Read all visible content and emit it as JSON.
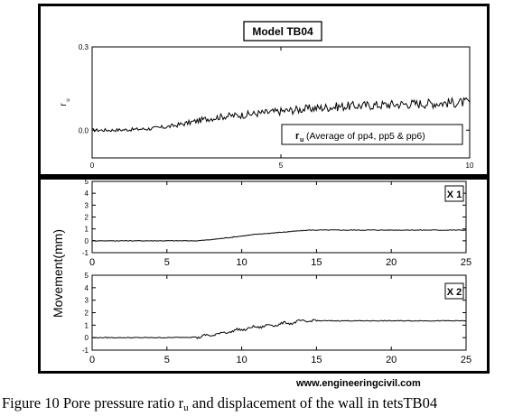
{
  "caption": {
    "prefix": "Figure 10 Pore pressure ratio r",
    "sub": "u",
    "suffix": " and displacement of the wall in tetsTB04"
  },
  "watermark": "www.engineeringcivil.com",
  "chart_data": [
    {
      "type": "line",
      "title": "Model TB04",
      "ylabel": "r",
      "ylabel_sub": "u",
      "legend": "r",
      "legend_sub": "u",
      "legend_text": " (Average of pp4, pp5 & pp6)",
      "xlim": [
        0,
        10
      ],
      "ylim": [
        -0.1,
        0.3
      ],
      "xticks": [
        "0",
        "5",
        "10"
      ],
      "yticks": [
        "0.0",
        "0.3"
      ],
      "ytick_values": [
        0.0,
        0.3
      ],
      "series": [
        {
          "x": [
            0,
            0.5,
            1,
            1.5,
            2,
            2.5,
            3,
            3.5,
            4,
            4.5,
            5,
            5.5,
            6,
            6.5,
            7,
            7.5,
            8,
            8.5,
            9,
            9.5,
            10
          ],
          "values": [
            0.0,
            0.0,
            0.002,
            0.005,
            0.012,
            0.025,
            0.04,
            0.05,
            0.055,
            0.062,
            0.068,
            0.075,
            0.08,
            0.085,
            0.088,
            0.09,
            0.093,
            0.095,
            0.097,
            0.099,
            0.1
          ]
        }
      ]
    },
    {
      "type": "line",
      "label": "X 1",
      "ylabel": "Movement(mm)",
      "xlim": [
        0,
        25
      ],
      "ylim": [
        -1,
        5
      ],
      "xticks": [
        "0",
        "5",
        "10",
        "15",
        "20",
        "25"
      ],
      "yticks": [
        "-1",
        "0",
        "1",
        "2",
        "3",
        "4",
        "5"
      ],
      "series": [
        {
          "x": [
            0,
            5,
            7,
            8,
            9,
            10,
            11,
            12,
            13,
            14,
            14.5,
            15,
            17,
            20,
            25
          ],
          "values": [
            0,
            0,
            0,
            0.1,
            0.25,
            0.4,
            0.55,
            0.65,
            0.75,
            0.85,
            0.9,
            0.9,
            0.9,
            0.9,
            0.9
          ]
        }
      ]
    },
    {
      "type": "line",
      "label": "X 2",
      "xlim": [
        0,
        25
      ],
      "ylim": [
        -1,
        5
      ],
      "xticks": [
        "0",
        "5",
        "10",
        "15",
        "20",
        "25"
      ],
      "yticks": [
        "-1",
        "0",
        "1",
        "2",
        "3",
        "4",
        "5"
      ],
      "series": [
        {
          "x": [
            0,
            5,
            7,
            8,
            9,
            10,
            11,
            12,
            13,
            14,
            14.5,
            15,
            17,
            20,
            25
          ],
          "values": [
            0,
            0,
            0.05,
            0.2,
            0.45,
            0.65,
            0.85,
            1.0,
            1.15,
            1.3,
            1.35,
            1.35,
            1.35,
            1.35,
            1.35
          ]
        }
      ]
    }
  ]
}
